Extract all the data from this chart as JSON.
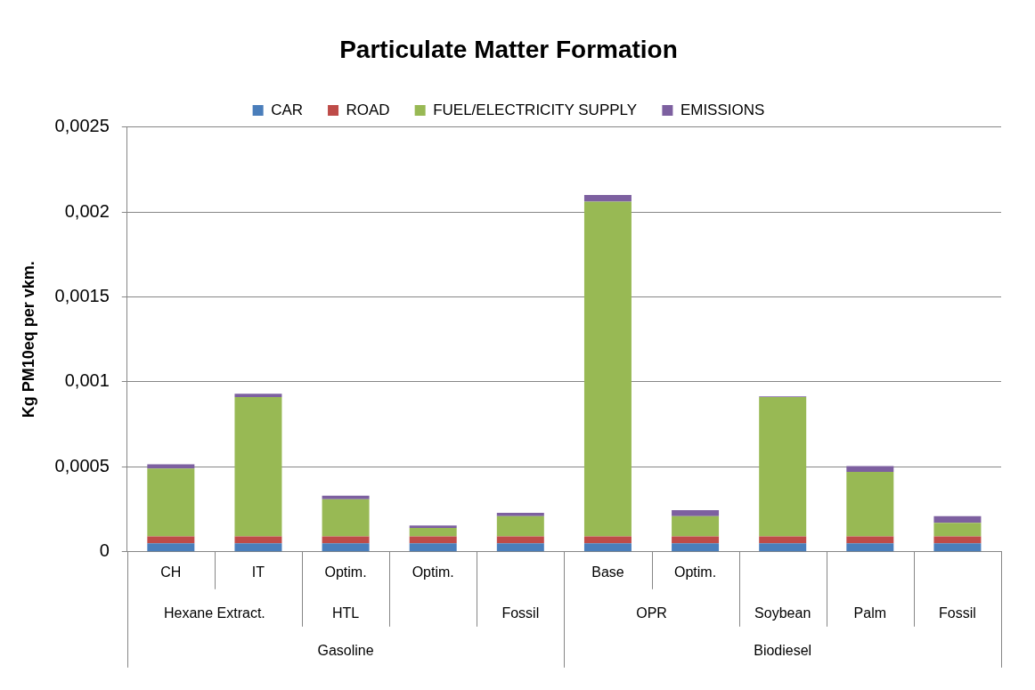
{
  "chart_data": {
    "type": "bar",
    "title": "Particulate Matter Formation",
    "ylabel": "Kg PM10eq per vkm.",
    "categories": [
      "CH",
      "IT",
      "Optim.",
      "Optim.",
      null,
      "Base",
      "Optim.",
      null,
      null,
      null
    ],
    "series": [
      {
        "name": "CAR",
        "color": "#4a7ebb",
        "values": [
          5e-05,
          5e-05,
          5e-05,
          5e-05,
          5e-05,
          5e-05,
          5e-05,
          5e-05,
          5e-05,
          5e-05
        ]
      },
      {
        "name": "ROAD",
        "color": "#be4b48",
        "values": [
          4e-05,
          4e-05,
          4e-05,
          4e-05,
          4e-05,
          4e-05,
          4e-05,
          4e-05,
          4e-05,
          4e-05
        ]
      },
      {
        "name": "FUEL/ELECTRICITY SUPPLY",
        "color": "#98b954",
        "values": [
          0.0004,
          0.00082,
          0.00022,
          5e-05,
          0.00012,
          0.00197,
          0.00012,
          0.00082,
          0.00038,
          8e-05
        ]
      },
      {
        "name": "EMISSIONS",
        "color": "#7d60a0",
        "values": [
          2.5e-05,
          2e-05,
          2e-05,
          1.5e-05,
          2e-05,
          4e-05,
          3.5e-05,
          5e-06,
          3.5e-05,
          4e-05
        ]
      }
    ],
    "stacked": true,
    "ylim": [
      0,
      0.0025
    ],
    "yticks": [
      0,
      {
        "value": 0.0005,
        "label": "0,0005"
      },
      {
        "value": 0.001,
        "label": "0,001"
      },
      {
        "value": 0.0015,
        "label": "0,0015"
      },
      {
        "value": 0.002,
        "label": "0,002"
      },
      {
        "value": 0.0025,
        "label": "0,0025"
      }
    ],
    "grid": "y",
    "legend": "top",
    "annotations": [
      "Hexane Extract.",
      "HTL",
      "Fossil",
      "OPR",
      "Soybean",
      "Palm",
      "Fossil",
      "Gasoline",
      "Biodiesel"
    ]
  }
}
